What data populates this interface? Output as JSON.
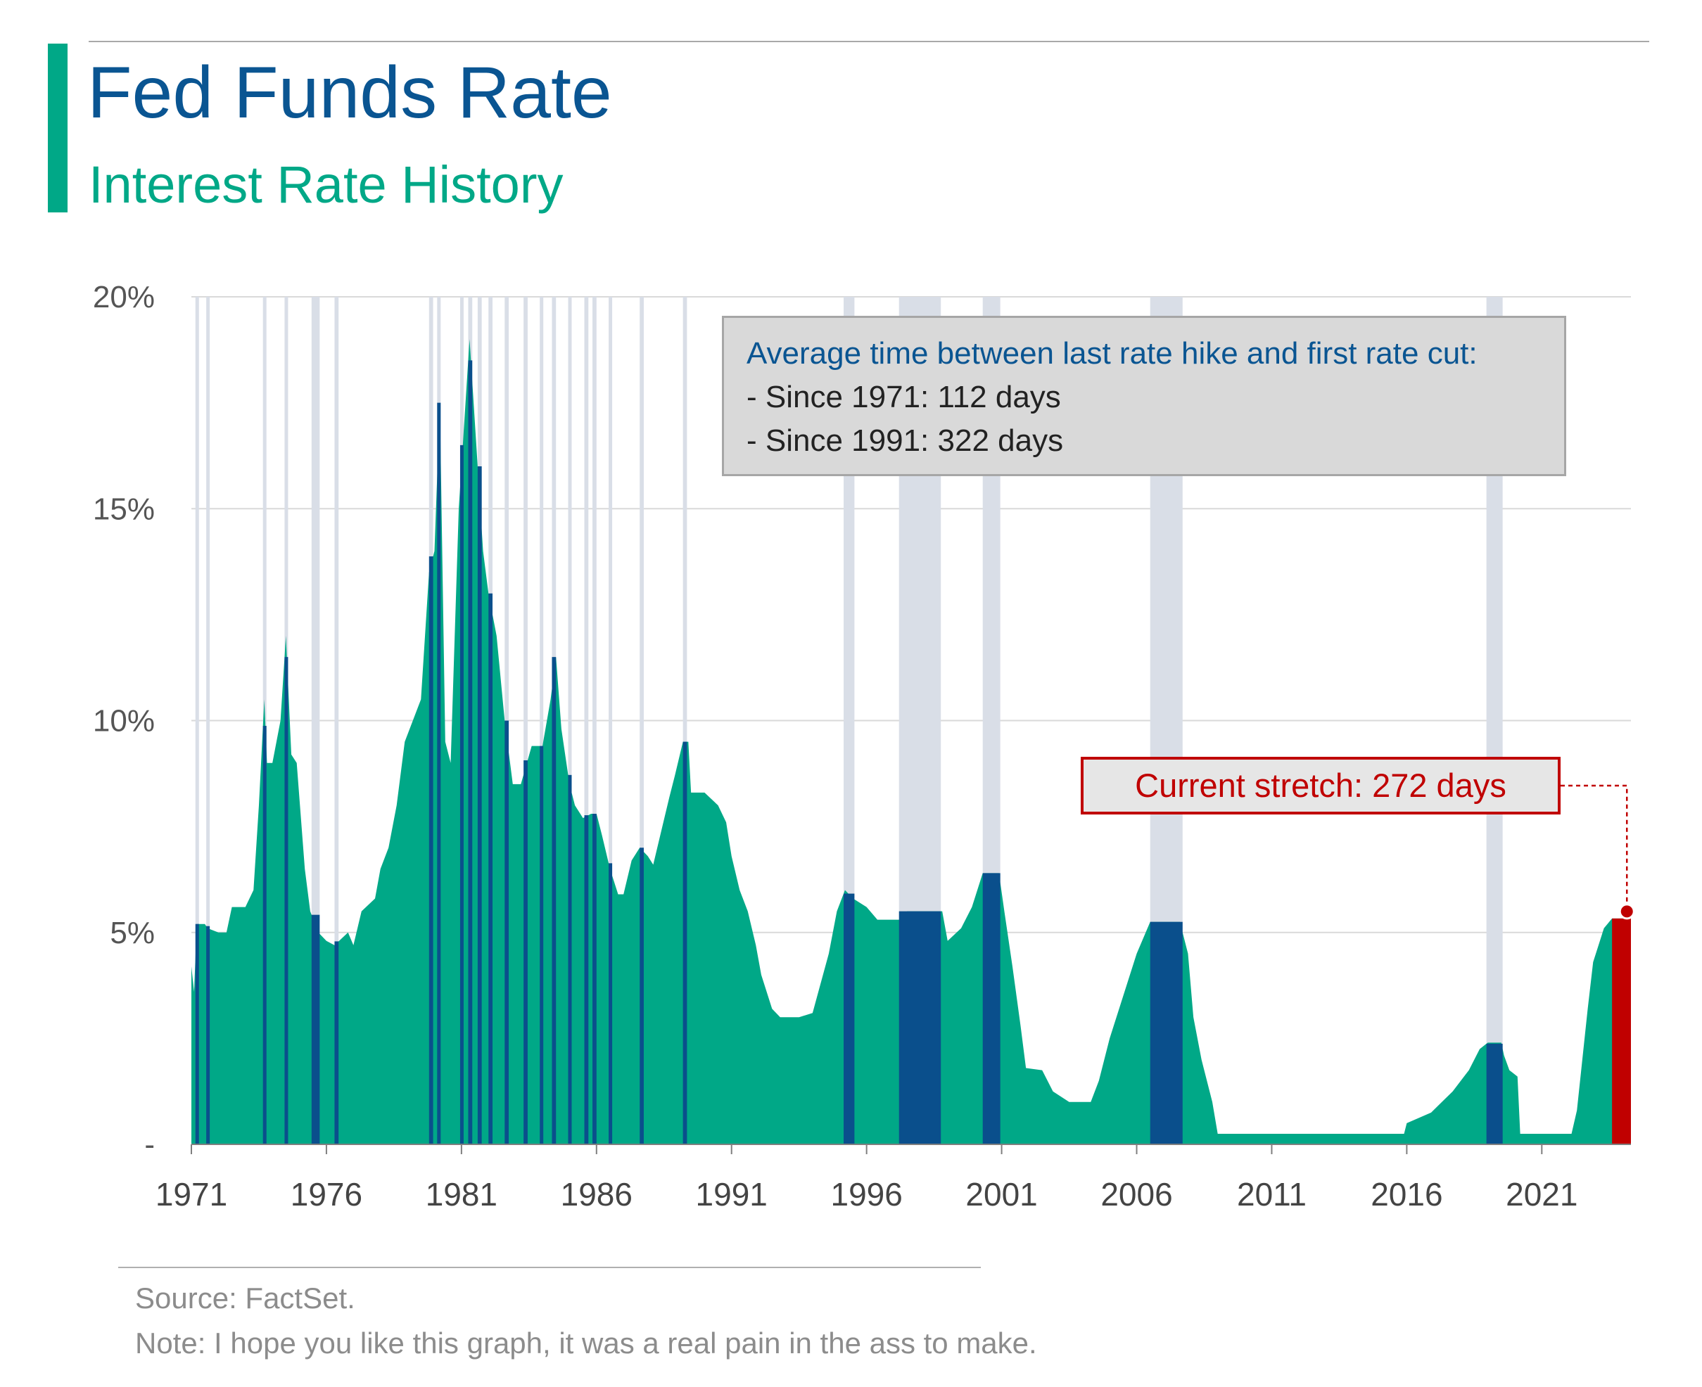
{
  "header": {
    "title": "Fed Funds Rate",
    "subtitle": "Interest Rate History"
  },
  "callout": {
    "heading": "Average time between last rate hike and first rate cut:",
    "line1": "- Since 1971: 112 days",
    "line2": "- Since 1991: 322 days"
  },
  "current_stretch": {
    "label": "Current stretch: 272 days"
  },
  "footer": {
    "source": "Source: FactSet.",
    "note": "Note: I hope you like this graph, it was a real pain in the ass to make."
  },
  "colors": {
    "area": "#00a887",
    "pause": "#0a4f8c",
    "pause_window": "#d9dee7",
    "current": "#c00000",
    "grid": "#d9d9d9",
    "title": "#0a5592",
    "subtitle": "#00a887"
  },
  "chart_data": {
    "type": "area",
    "title": "Fed Funds Rate",
    "subtitle": "Interest Rate History",
    "xlabel": "",
    "ylabel": "",
    "x_range": [
      1971.0,
      2024.3
    ],
    "ylim": [
      0,
      20
    ],
    "y_ticks": [
      {
        "value": 0,
        "label": "-"
      },
      {
        "value": 5,
        "label": "5%"
      },
      {
        "value": 10,
        "label": "10%"
      },
      {
        "value": 15,
        "label": "15%"
      },
      {
        "value": 20,
        "label": "20%"
      }
    ],
    "x_ticks": [
      "1971",
      "1976",
      "1981",
      "1986",
      "1991",
      "1996",
      "2001",
      "2006",
      "2011",
      "2016",
      "2021"
    ],
    "grid": true,
    "series": [
      {
        "points": [
          [
            1971.0,
            4.2
          ],
          [
            1971.1,
            3.6
          ],
          [
            1971.2,
            5.2
          ],
          [
            1971.5,
            5.2
          ],
          [
            1971.6,
            5.1
          ],
          [
            1972.0,
            5.0
          ],
          [
            1972.3,
            5.0
          ],
          [
            1972.5,
            5.6
          ],
          [
            1973.0,
            5.6
          ],
          [
            1973.3,
            6.0
          ],
          [
            1973.5,
            8.0
          ],
          [
            1973.7,
            10.5
          ],
          [
            1973.8,
            9.0
          ],
          [
            1974.0,
            9.0
          ],
          [
            1974.3,
            10.0
          ],
          [
            1974.5,
            12.0
          ],
          [
            1974.7,
            9.2
          ],
          [
            1974.9,
            9.0
          ],
          [
            1975.2,
            6.5
          ],
          [
            1975.4,
            5.5
          ],
          [
            1975.7,
            5.0
          ],
          [
            1976.0,
            4.8
          ],
          [
            1976.3,
            4.7
          ],
          [
            1976.8,
            5.0
          ],
          [
            1977.0,
            4.7
          ],
          [
            1977.3,
            5.5
          ],
          [
            1977.8,
            5.8
          ],
          [
            1978.0,
            6.5
          ],
          [
            1978.3,
            7.0
          ],
          [
            1978.6,
            8.0
          ],
          [
            1978.9,
            9.5
          ],
          [
            1979.2,
            10.0
          ],
          [
            1979.5,
            10.5
          ],
          [
            1979.8,
            13.5
          ],
          [
            1980.0,
            14.0
          ],
          [
            1980.2,
            17.5
          ],
          [
            1980.4,
            9.5
          ],
          [
            1980.6,
            9.0
          ],
          [
            1980.9,
            15.0
          ],
          [
            1981.0,
            16.0
          ],
          [
            1981.3,
            19.0
          ],
          [
            1981.6,
            16.0
          ],
          [
            1981.8,
            14.0
          ],
          [
            1982.0,
            13.0
          ],
          [
            1982.3,
            12.0
          ],
          [
            1982.6,
            10.0
          ],
          [
            1982.9,
            8.5
          ],
          [
            1983.2,
            8.5
          ],
          [
            1983.6,
            9.4
          ],
          [
            1984.0,
            9.4
          ],
          [
            1984.3,
            10.5
          ],
          [
            1984.5,
            11.5
          ],
          [
            1984.7,
            9.8
          ],
          [
            1985.0,
            8.5
          ],
          [
            1985.2,
            8.0
          ],
          [
            1985.5,
            7.7
          ],
          [
            1985.8,
            7.8
          ],
          [
            1986.0,
            7.8
          ],
          [
            1986.2,
            7.3
          ],
          [
            1986.5,
            6.5
          ],
          [
            1986.8,
            5.9
          ],
          [
            1987.0,
            5.9
          ],
          [
            1987.3,
            6.7
          ],
          [
            1987.6,
            7.0
          ],
          [
            1987.9,
            6.8
          ],
          [
            1988.1,
            6.6
          ],
          [
            1988.4,
            7.4
          ],
          [
            1988.7,
            8.2
          ],
          [
            1988.9,
            8.7
          ],
          [
            1989.2,
            9.5
          ],
          [
            1989.4,
            9.5
          ],
          [
            1989.5,
            8.3
          ],
          [
            1990.0,
            8.3
          ],
          [
            1990.5,
            8.0
          ],
          [
            1990.8,
            7.6
          ],
          [
            1991.0,
            6.8
          ],
          [
            1991.3,
            6.0
          ],
          [
            1991.6,
            5.5
          ],
          [
            1991.9,
            4.7
          ],
          [
            1992.1,
            4.0
          ],
          [
            1992.5,
            3.2
          ],
          [
            1992.8,
            3.0
          ],
          [
            1993.5,
            3.0
          ],
          [
            1994.0,
            3.1
          ],
          [
            1994.3,
            3.8
          ],
          [
            1994.6,
            4.5
          ],
          [
            1994.9,
            5.5
          ],
          [
            1995.2,
            6.0
          ],
          [
            1995.5,
            5.8
          ],
          [
            1996.0,
            5.6
          ],
          [
            1996.4,
            5.3
          ],
          [
            1997.2,
            5.3
          ],
          [
            1997.5,
            5.5
          ],
          [
            1998.8,
            5.5
          ],
          [
            1999.0,
            4.8
          ],
          [
            1999.5,
            5.1
          ],
          [
            1999.9,
            5.6
          ],
          [
            2000.3,
            6.4
          ],
          [
            2000.9,
            6.4
          ],
          [
            2001.1,
            5.5
          ],
          [
            2001.4,
            4.2
          ],
          [
            2001.7,
            2.8
          ],
          [
            2001.9,
            1.8
          ],
          [
            2002.5,
            1.75
          ],
          [
            2002.9,
            1.25
          ],
          [
            2003.5,
            1.0
          ],
          [
            2004.3,
            1.0
          ],
          [
            2004.6,
            1.5
          ],
          [
            2005.0,
            2.5
          ],
          [
            2005.5,
            3.5
          ],
          [
            2006.0,
            4.5
          ],
          [
            2006.5,
            5.25
          ],
          [
            2007.6,
            5.25
          ],
          [
            2007.9,
            4.5
          ],
          [
            2008.1,
            3.0
          ],
          [
            2008.4,
            2.0
          ],
          [
            2008.8,
            1.0
          ],
          [
            2009.0,
            0.25
          ],
          [
            2015.9,
            0.25
          ],
          [
            2016.0,
            0.5
          ],
          [
            2016.9,
            0.75
          ],
          [
            2017.3,
            1.0
          ],
          [
            2017.7,
            1.25
          ],
          [
            2018.0,
            1.5
          ],
          [
            2018.3,
            1.75
          ],
          [
            2018.7,
            2.25
          ],
          [
            2019.0,
            2.4
          ],
          [
            2019.5,
            2.4
          ],
          [
            2019.6,
            2.1
          ],
          [
            2019.8,
            1.75
          ],
          [
            2020.1,
            1.6
          ],
          [
            2020.2,
            0.25
          ],
          [
            2022.1,
            0.25
          ],
          [
            2022.3,
            0.8
          ],
          [
            2022.5,
            2.0
          ],
          [
            2022.7,
            3.2
          ],
          [
            2022.9,
            4.3
          ],
          [
            2023.1,
            4.7
          ],
          [
            2023.3,
            5.1
          ],
          [
            2023.6,
            5.33
          ],
          [
            2024.3,
            5.33
          ]
        ]
      }
    ],
    "pause_windows": [
      [
        1971.15,
        1971.25
      ],
      [
        1971.55,
        1971.65
      ],
      [
        1973.65,
        1973.75
      ],
      [
        1974.45,
        1974.55
      ],
      [
        1975.45,
        1975.75
      ],
      [
        1976.3,
        1976.45
      ],
      [
        1979.8,
        1979.95
      ],
      [
        1980.1,
        1980.2
      ],
      [
        1980.95,
        1981.05
      ],
      [
        1981.25,
        1981.4
      ],
      [
        1981.6,
        1981.75
      ],
      [
        1982.0,
        1982.15
      ],
      [
        1982.6,
        1982.75
      ],
      [
        1983.3,
        1983.45
      ],
      [
        1983.9,
        1984.0
      ],
      [
        1984.35,
        1984.5
      ],
      [
        1984.95,
        1985.05
      ],
      [
        1985.55,
        1985.7
      ],
      [
        1985.85,
        1986.0
      ],
      [
        1986.45,
        1986.55
      ],
      [
        1987.6,
        1987.75
      ],
      [
        1989.2,
        1989.35
      ],
      [
        1995.15,
        1995.55
      ],
      [
        1997.2,
        1998.75
      ],
      [
        2000.3,
        2000.95
      ],
      [
        2006.5,
        2007.7
      ],
      [
        2018.95,
        2019.55
      ]
    ],
    "current": {
      "start": 2023.6,
      "end": 2024.3,
      "value": 5.33
    }
  }
}
